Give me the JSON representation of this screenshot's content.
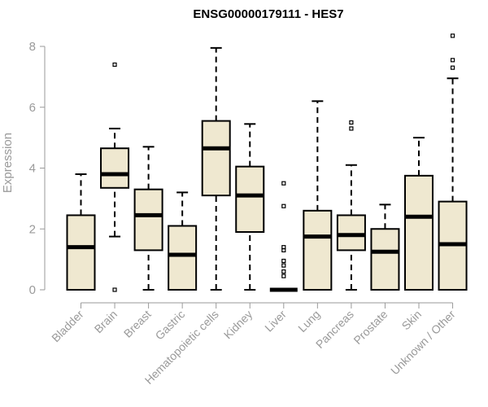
{
  "chart_data": {
    "type": "boxplot",
    "title": "ENSG00000179111 - HES7",
    "xlabel": "",
    "ylabel": "Expression",
    "ylim": [
      0,
      8.4
    ],
    "yticks": [
      0,
      2,
      4,
      6,
      8
    ],
    "grid": false,
    "legend": "none",
    "box_color": "#efe8d0",
    "categories": [
      "Bladder",
      "Brain",
      "Breast",
      "Gastric",
      "Hematopoietic cells",
      "Kidney",
      "Liver",
      "Lung",
      "Pancreas",
      "Prostate",
      "Skin",
      "Unknown / Other"
    ],
    "boxes": [
      {
        "category": "Bladder",
        "min": 0,
        "q1": 0,
        "median": 1.4,
        "q3": 2.45,
        "max": 3.8,
        "outliers": []
      },
      {
        "category": "Brain",
        "min": 1.75,
        "q1": 3.35,
        "median": 3.8,
        "q3": 4.65,
        "max": 5.3,
        "outliers": [
          7.4,
          0
        ]
      },
      {
        "category": "Breast",
        "min": 0,
        "q1": 1.3,
        "median": 2.45,
        "q3": 3.3,
        "max": 4.7,
        "outliers": []
      },
      {
        "category": "Gastric",
        "min": 0,
        "q1": 0,
        "median": 1.15,
        "q3": 2.1,
        "max": 3.2,
        "outliers": []
      },
      {
        "category": "Hematopoietic cells",
        "min": 0,
        "q1": 3.1,
        "median": 4.65,
        "q3": 5.55,
        "max": 7.95,
        "outliers": []
      },
      {
        "category": "Kidney",
        "min": 0,
        "q1": 1.9,
        "median": 3.1,
        "q3": 4.05,
        "max": 5.45,
        "outliers": []
      },
      {
        "category": "Liver",
        "min": 0,
        "q1": 0,
        "median": 0,
        "q3": 0,
        "max": 0,
        "outliers": [
          3.5,
          2.75,
          1.4,
          1.3,
          0.95,
          0.8,
          0.6,
          0.45
        ]
      },
      {
        "category": "Lung",
        "min": 0,
        "q1": 0,
        "median": 1.75,
        "q3": 2.6,
        "max": 6.2,
        "outliers": []
      },
      {
        "category": "Pancreas",
        "min": 0,
        "q1": 1.3,
        "median": 1.8,
        "q3": 2.45,
        "max": 4.1,
        "outliers": [
          5.5,
          5.3
        ]
      },
      {
        "category": "Prostate",
        "min": 0,
        "q1": 0,
        "median": 1.25,
        "q3": 2.0,
        "max": 2.8,
        "outliers": []
      },
      {
        "category": "Skin",
        "min": 0,
        "q1": 0,
        "median": 2.4,
        "q3": 3.75,
        "max": 5.0,
        "outliers": []
      },
      {
        "category": "Unknown / Other",
        "min": 0,
        "q1": 0,
        "median": 1.5,
        "q3": 2.9,
        "max": 6.95,
        "outliers": [
          8.35,
          7.55,
          7.3
        ]
      }
    ]
  }
}
